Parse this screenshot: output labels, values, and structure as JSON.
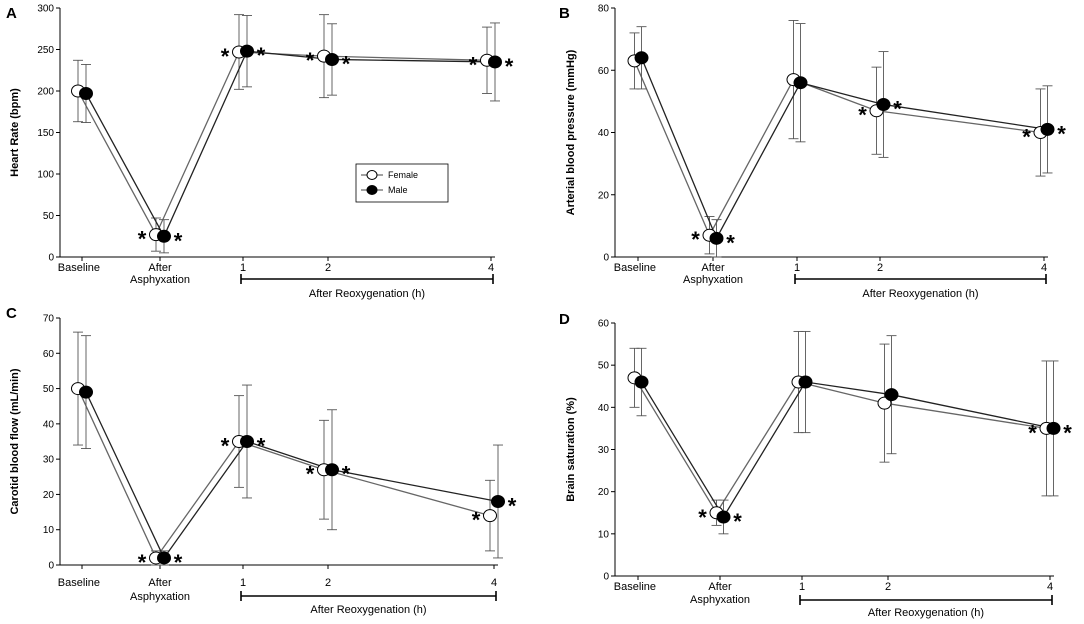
{
  "figure": {
    "x_positions": [
      0,
      1,
      2,
      3,
      4
    ]
  },
  "chart_data": [
    {
      "type": "line",
      "panel": "A",
      "ylabel": "Heart Rate (bpm)",
      "ylim": [
        0,
        300
      ],
      "yticks": [
        "0",
        "50",
        "100",
        "150",
        "200",
        "250",
        "300"
      ],
      "categories": [
        "Baseline",
        "After Asphyxation",
        "1",
        "2",
        "4"
      ],
      "category_lines": [
        [
          "Baseline"
        ],
        [
          "After",
          "Asphyxation"
        ],
        [
          "1"
        ],
        [
          "2"
        ],
        [
          "4"
        ]
      ],
      "bracket_label": "After Reoxygenation (h)",
      "series": [
        {
          "name": "Female",
          "marker": "open",
          "values": [
            200,
            27,
            247,
            242,
            237
          ],
          "err": [
            37,
            20,
            45,
            50,
            40
          ]
        },
        {
          "name": "Male",
          "marker": "filled",
          "values": [
            197,
            25,
            248,
            238,
            235
          ],
          "err": [
            35,
            20,
            43,
            43,
            47
          ]
        }
      ],
      "stars": {
        "Female": [
          false,
          true,
          true,
          true,
          true
        ],
        "Male": [
          false,
          true,
          true,
          true,
          true
        ]
      },
      "legend": [
        "Female",
        "Male"
      ]
    },
    {
      "type": "line",
      "panel": "B",
      "ylabel": "Arterial blood pressure (mmHg)",
      "ylim": [
        0,
        80
      ],
      "yticks": [
        "0",
        "20",
        "40",
        "60",
        "80"
      ],
      "categories": [
        "Baseline",
        "After Asphyxation",
        "1",
        "2",
        "4"
      ],
      "category_lines": [
        [
          "Baseline"
        ],
        [
          "After",
          "Asphyxation"
        ],
        [
          "1"
        ],
        [
          "2"
        ],
        [
          "4"
        ]
      ],
      "bracket_label": "After Reoxygenation (h)",
      "series": [
        {
          "name": "Female",
          "marker": "open",
          "values": [
            63,
            7,
            57,
            47,
            40
          ],
          "err": [
            9,
            6,
            19,
            14,
            14
          ]
        },
        {
          "name": "Male",
          "marker": "filled",
          "values": [
            64,
            6,
            56,
            49,
            41
          ],
          "err": [
            10,
            6,
            19,
            17,
            14
          ]
        }
      ],
      "stars": {
        "Female": [
          false,
          true,
          false,
          true,
          true
        ],
        "Male": [
          false,
          true,
          false,
          true,
          true
        ]
      }
    },
    {
      "type": "line",
      "panel": "C",
      "ylabel": "Carotid blood flow (mL/min)",
      "ylim": [
        0,
        70
      ],
      "yticks": [
        "0",
        "10",
        "20",
        "30",
        "40",
        "50",
        "60",
        "70"
      ],
      "categories": [
        "Baseline",
        "After Asphyxation",
        "1",
        "2",
        "4"
      ],
      "category_lines": [
        [
          "Baseline"
        ],
        [
          "After",
          "Asphyxation"
        ],
        [
          "1"
        ],
        [
          "2"
        ],
        [
          "4"
        ]
      ],
      "bracket_label": "After Reoxygenation (h)",
      "series": [
        {
          "name": "Female",
          "marker": "open",
          "values": [
            50,
            2,
            35,
            27,
            14
          ],
          "err": [
            16,
            2,
            13,
            14,
            10
          ]
        },
        {
          "name": "Male",
          "marker": "filled",
          "values": [
            49,
            2,
            35,
            27,
            18
          ],
          "err": [
            16,
            2,
            16,
            17,
            16
          ]
        }
      ],
      "stars": {
        "Female": [
          false,
          true,
          true,
          true,
          true
        ],
        "Male": [
          false,
          true,
          true,
          true,
          true
        ]
      }
    },
    {
      "type": "line",
      "panel": "D",
      "ylabel": "Brain saturation (%)",
      "ylim": [
        0,
        60
      ],
      "yticks": [
        "0",
        "10",
        "20",
        "30",
        "40",
        "50",
        "60"
      ],
      "categories": [
        "Baseline",
        "After Asphyxation",
        "1",
        "2",
        "4"
      ],
      "category_lines": [
        [
          "Baseline"
        ],
        [
          "After",
          "Asphyxation"
        ],
        [
          "1"
        ],
        [
          "2"
        ],
        [
          "4"
        ]
      ],
      "bracket_label": "After Reoxygenation (h)",
      "series": [
        {
          "name": "Female",
          "marker": "open",
          "values": [
            47,
            15,
            46,
            41,
            35
          ],
          "err": [
            7,
            3,
            12,
            14,
            16
          ]
        },
        {
          "name": "Male",
          "marker": "filled",
          "values": [
            46,
            14,
            46,
            43,
            35
          ],
          "err": [
            8,
            4,
            12,
            14,
            16
          ]
        }
      ],
      "stars": {
        "Female": [
          false,
          true,
          false,
          false,
          true
        ],
        "Male": [
          false,
          true,
          false,
          false,
          true
        ]
      }
    }
  ]
}
